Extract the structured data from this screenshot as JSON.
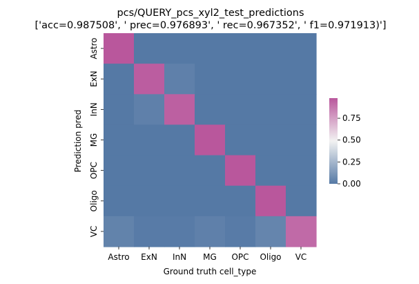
{
  "chart_data": {
    "type": "heatmap",
    "title": "pcs/QUERY_pcs_xyl2_test_predictions",
    "subtitle": "['acc=0.987508', '  prec=0.976893', ' rec=0.967352', ' f1=0.971913)']",
    "xlabel": "Ground truth cell_type",
    "ylabel": "Prediction pred",
    "x_categories": [
      "Astro",
      "ExN",
      "InN",
      "MG",
      "OPC",
      "Oligo",
      "VC"
    ],
    "y_categories": [
      "Astro",
      "ExN",
      "InN",
      "MG",
      "OPC",
      "Oligo",
      "VC"
    ],
    "values": [
      [
        0.99,
        0.0,
        0.0,
        0.0,
        0.0,
        0.0,
        0.0
      ],
      [
        0.0,
        0.96,
        0.03,
        0.0,
        0.0,
        0.0,
        0.0
      ],
      [
        0.0,
        0.03,
        0.95,
        0.0,
        0.0,
        0.0,
        0.0
      ],
      [
        0.0,
        0.0,
        0.0,
        0.99,
        0.0,
        0.0,
        0.0
      ],
      [
        0.0,
        0.0,
        0.0,
        0.0,
        0.99,
        0.0,
        0.0
      ],
      [
        0.0,
        0.0,
        0.0,
        0.0,
        0.0,
        0.99,
        0.0
      ],
      [
        0.04,
        0.01,
        0.01,
        0.03,
        0.01,
        0.05,
        0.92
      ]
    ],
    "colorbar": {
      "range": [
        0,
        0.98
      ],
      "ticks": [
        0.0,
        0.25,
        0.5,
        0.75
      ],
      "tick_labels": [
        "0.00",
        "0.25",
        "0.50",
        "0.75"
      ],
      "colormap": {
        "low": "#5579a5",
        "mid": "#f2f2f2",
        "high": "#b9579c"
      }
    },
    "grid": false,
    "legend": "colorbar-right"
  }
}
